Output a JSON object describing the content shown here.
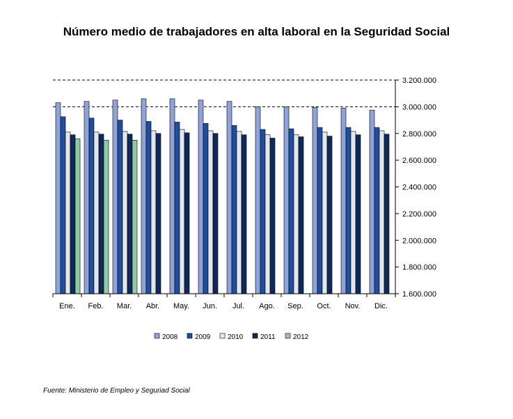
{
  "chart_data": {
    "type": "bar",
    "title": "Número medio de trabajadores en alta laboral en la Seguridad Social",
    "xlabel": "",
    "ylabel": "",
    "ylim": [
      1600000,
      3200000
    ],
    "y_ticks": [
      "1.600.000",
      "1.800.000",
      "2.000.000",
      "2.200.000",
      "2.400.000",
      "2.600.000",
      "2.800.000",
      "3.000.000",
      "3.200.000"
    ],
    "y_tick_values": [
      1600000,
      1800000,
      2000000,
      2200000,
      2400000,
      2600000,
      2800000,
      3000000,
      3200000
    ],
    "y_axis_side": "right",
    "grid": "dashed lines at 3.000.000 and 3.200.000",
    "legend_position": "bottom",
    "categories": [
      "Ene.",
      "Feb.",
      "Mar.",
      "Abr.",
      "May.",
      "Jun.",
      "Jul.",
      "Ago.",
      "Sep.",
      "Oct.",
      "Nov.",
      "Dic."
    ],
    "series": [
      {
        "name": "2008",
        "color": "#8fa3d9",
        "values": [
          3030000,
          3040000,
          3050000,
          3060000,
          3060000,
          3050000,
          3040000,
          3000000,
          3000000,
          2995000,
          2990000,
          2975000
        ]
      },
      {
        "name": "2009",
        "color": "#1f4e9e",
        "values": [
          2925000,
          2915000,
          2900000,
          2890000,
          2885000,
          2875000,
          2860000,
          2830000,
          2835000,
          2845000,
          2845000,
          2845000
        ]
      },
      {
        "name": "2010",
        "color": "#e4e6ec",
        "values": [
          2810000,
          2810000,
          2815000,
          2820000,
          2830000,
          2820000,
          2815000,
          2790000,
          2790000,
          2810000,
          2815000,
          2820000
        ]
      },
      {
        "name": "2011",
        "color": "#0f2a5a",
        "values": [
          2790000,
          2795000,
          2795000,
          2800000,
          2805000,
          2800000,
          2790000,
          2765000,
          2775000,
          2780000,
          2790000,
          2795000
        ]
      },
      {
        "name": "2012",
        "color": "#8fc9a8",
        "values": [
          2760000,
          2750000,
          2750000,
          null,
          null,
          null,
          null,
          null,
          null,
          null,
          null,
          null
        ]
      }
    ]
  },
  "source": "Fuente: Ministerio de Empleo y Seguriad Social"
}
